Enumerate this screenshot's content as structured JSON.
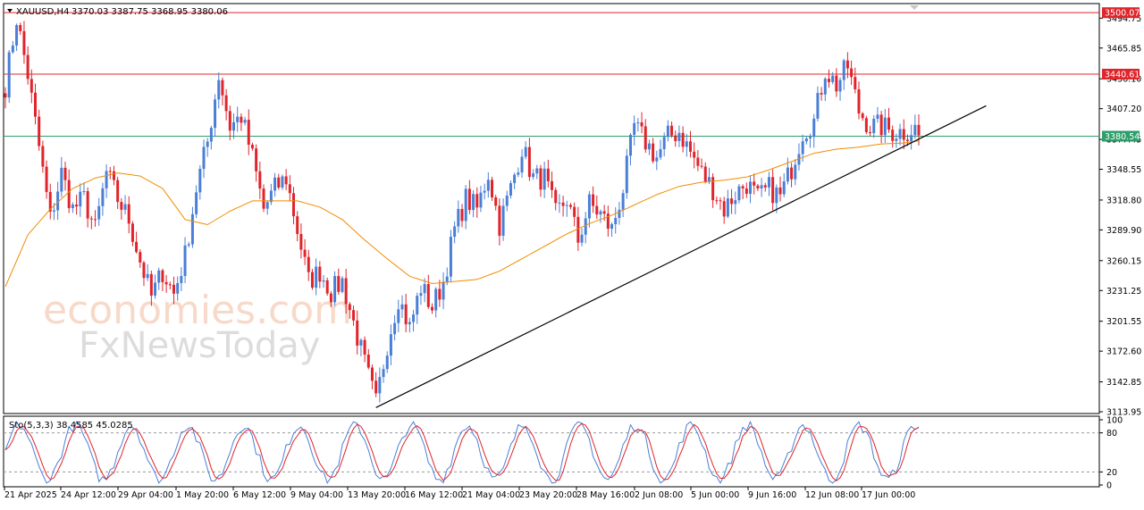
{
  "header": {
    "symbol": "XAUUSD,H4",
    "ohlc": "3370.03 3387.75 3368.95 3380.06"
  },
  "watermark": {
    "line1": "economies.com",
    "line2": "FxNewsToday"
  },
  "colors": {
    "bull": "#4a7fd6",
    "bear": "#e0242b",
    "ma": "#f08c00",
    "resistance": "#e0242b",
    "current": "#2e9e6a",
    "trendline": "#000000",
    "stoch_main": "#4a7fd6",
    "stoch_signal": "#e0242b"
  },
  "chart_data": [
    {
      "type": "candlestick",
      "symbol": "XAUUSD",
      "timeframe": "H4",
      "ylim": [
        3113.95,
        3508
      ],
      "yticks": [
        3494.75,
        3465.85,
        3436.1,
        3407.2,
        3377.45,
        3348.55,
        3318.8,
        3289.9,
        3260.15,
        3231.25,
        3201.55,
        3172.6,
        3142.85,
        3113.95
      ],
      "xtick_labels": [
        "21 Apr 2025",
        "24 Apr 12:00",
        "29 Apr 04:00",
        "1 May 20:00",
        "6 May 12:00",
        "9 May 04:00",
        "13 May 20:00",
        "16 May 12:00",
        "21 May 04:00",
        "23 May 20:00",
        "28 May 16:00",
        "2 Jun 08:00",
        "5 Jun 00:00",
        "9 Jun 16:00",
        "12 Jun 08:00",
        "17 Jun 00:00"
      ],
      "close_path": [
        [
          0,
          3430
        ],
        [
          3,
          3495
        ],
        [
          6,
          3440
        ],
        [
          9,
          3370
        ],
        [
          12,
          3300
        ],
        [
          15,
          3345
        ],
        [
          18,
          3310
        ],
        [
          21,
          3320
        ],
        [
          24,
          3290
        ],
        [
          27,
          3345
        ],
        [
          30,
          3320
        ],
        [
          33,
          3300
        ],
        [
          36,
          3260
        ],
        [
          39,
          3225
        ],
        [
          42,
          3250
        ],
        [
          45,
          3228
        ],
        [
          48,
          3265
        ],
        [
          51,
          3330
        ],
        [
          54,
          3375
        ],
        [
          57,
          3440
        ],
        [
          60,
          3390
        ],
        [
          63,
          3400
        ],
        [
          66,
          3360
        ],
        [
          69,
          3310
        ],
        [
          72,
          3330
        ],
        [
          75,
          3340
        ],
        [
          78,
          3290
        ],
        [
          81,
          3240
        ],
        [
          84,
          3250
        ],
        [
          87,
          3230
        ],
        [
          90,
          3240
        ],
        [
          93,
          3200
        ],
        [
          96,
          3160
        ],
        [
          99,
          3122
        ],
        [
          102,
          3180
        ],
        [
          105,
          3225
        ],
        [
          108,
          3195
        ],
        [
          111,
          3235
        ],
        [
          114,
          3215
        ],
        [
          117,
          3240
        ],
        [
          120,
          3290
        ],
        [
          123,
          3320
        ],
        [
          126,
          3310
        ],
        [
          129,
          3345
        ],
        [
          132,
          3295
        ],
        [
          135,
          3330
        ],
        [
          138,
          3370
        ],
        [
          141,
          3340
        ],
        [
          144,
          3340
        ],
        [
          147,
          3305
        ],
        [
          150,
          3320
        ],
        [
          153,
          3280
        ],
        [
          156,
          3315
        ],
        [
          159,
          3305
        ],
        [
          162,
          3290
        ],
        [
          165,
          3330
        ],
        [
          168,
          3390
        ],
        [
          171,
          3375
        ],
        [
          174,
          3360
        ],
        [
          177,
          3380
        ],
        [
          180,
          3385
        ],
        [
          183,
          3365
        ],
        [
          186,
          3345
        ],
        [
          189,
          3330
        ],
        [
          192,
          3310
        ],
        [
          195,
          3325
        ],
        [
          198,
          3335
        ],
        [
          201,
          3320
        ],
        [
          204,
          3330
        ],
        [
          207,
          3322
        ],
        [
          210,
          3350
        ],
        [
          213,
          3385
        ],
        [
          216,
          3395
        ],
        [
          219,
          3445
        ],
        [
          222,
          3430
        ],
        [
          225,
          3448
        ],
        [
          228,
          3405
        ],
        [
          231,
          3390
        ],
        [
          234,
          3390
        ],
        [
          237,
          3385
        ],
        [
          240,
          3385
        ],
        [
          243,
          3388
        ],
        [
          244,
          3380
        ]
      ],
      "ma_path": [
        [
          0,
          3235
        ],
        [
          6,
          3285
        ],
        [
          12,
          3310
        ],
        [
          18,
          3330
        ],
        [
          24,
          3340
        ],
        [
          30,
          3345
        ],
        [
          36,
          3342
        ],
        [
          42,
          3330
        ],
        [
          48,
          3300
        ],
        [
          54,
          3295
        ],
        [
          60,
          3308
        ],
        [
          66,
          3318
        ],
        [
          72,
          3318
        ],
        [
          78,
          3318
        ],
        [
          84,
          3312
        ],
        [
          90,
          3300
        ],
        [
          96,
          3280
        ],
        [
          102,
          3262
        ],
        [
          108,
          3245
        ],
        [
          114,
          3238
        ],
        [
          120,
          3240
        ],
        [
          126,
          3242
        ],
        [
          132,
          3250
        ],
        [
          138,
          3262
        ],
        [
          144,
          3274
        ],
        [
          150,
          3286
        ],
        [
          156,
          3296
        ],
        [
          162,
          3304
        ],
        [
          168,
          3314
        ],
        [
          174,
          3324
        ],
        [
          180,
          3332
        ],
        [
          186,
          3336
        ],
        [
          192,
          3338
        ],
        [
          198,
          3341
        ],
        [
          204,
          3348
        ],
        [
          210,
          3356
        ],
        [
          216,
          3364
        ],
        [
          222,
          3368
        ],
        [
          228,
          3370
        ],
        [
          234,
          3373
        ],
        [
          240,
          3374
        ],
        [
          244,
          3376
        ]
      ],
      "lines": [
        {
          "kind": "resistance",
          "price": 3500.07,
          "label": "3500.07"
        },
        {
          "kind": "resistance",
          "price": 3440.61,
          "label": "3440.61"
        },
        {
          "kind": "current",
          "price": 3380.54,
          "label": "3380.54"
        }
      ],
      "trendline": [
        [
          99,
          3118
        ],
        [
          262,
          3410
        ]
      ]
    },
    {
      "type": "line",
      "title": "Sto(5,3,3) 38.4585 45.0285",
      "ylim": [
        0,
        100
      ],
      "yticks": [
        100,
        80,
        20,
        0
      ],
      "levels": [
        80,
        20
      ]
    }
  ]
}
